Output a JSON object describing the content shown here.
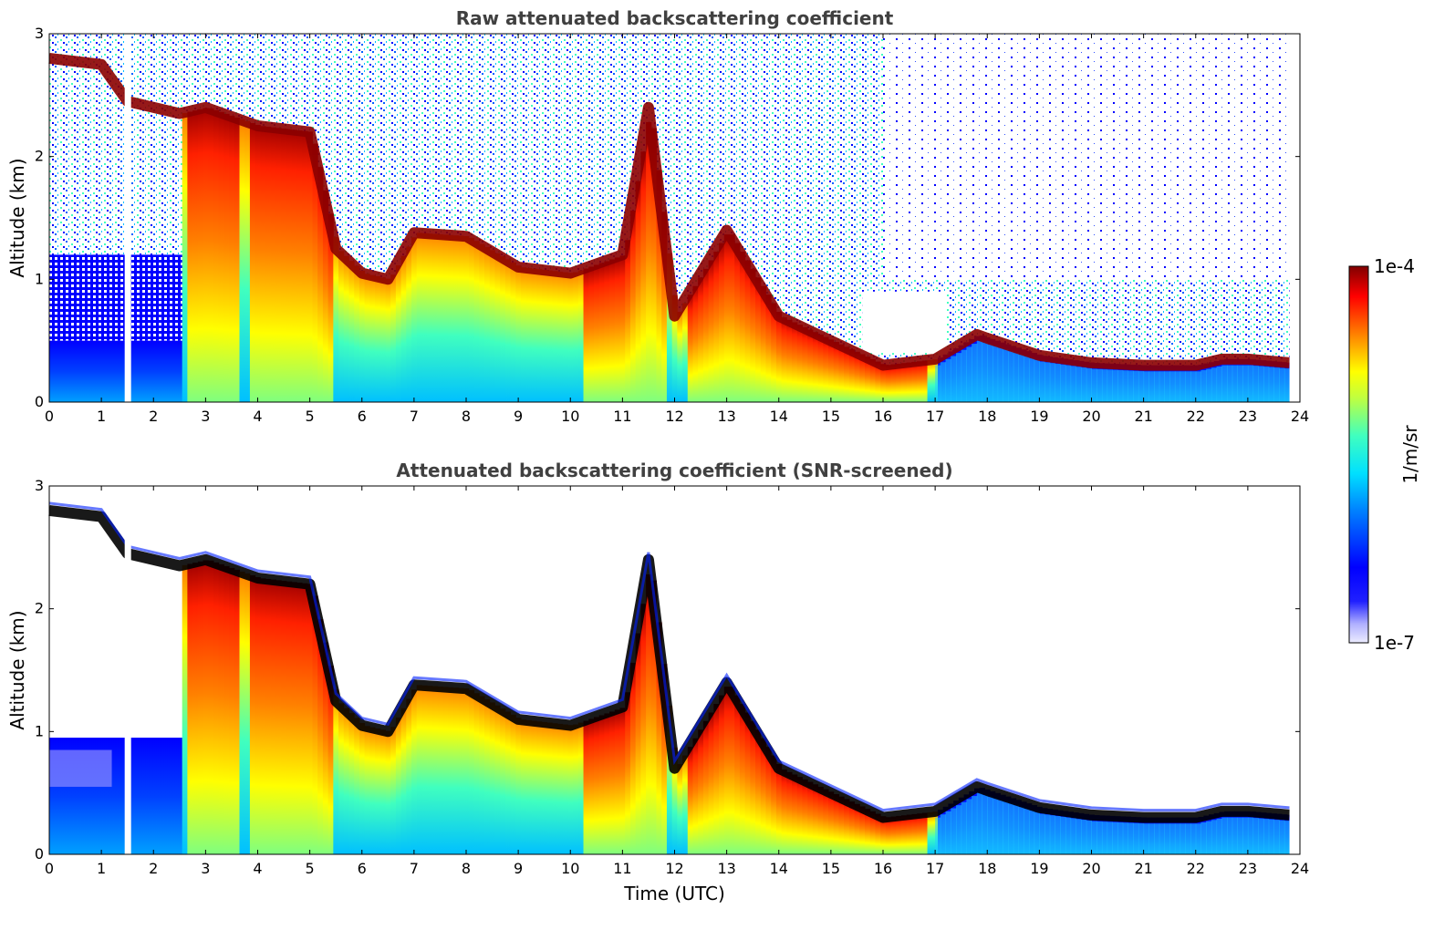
{
  "chart_data": [
    {
      "type": "heatmap",
      "title": "Raw attenuated backscattering coefficient",
      "xlabel": "",
      "ylabel": "Altitude (km)",
      "xlim": [
        0,
        24
      ],
      "ylim": [
        0,
        3
      ],
      "x_ticks": [
        "0",
        "1",
        "2",
        "3",
        "4",
        "5",
        "6",
        "7",
        "8",
        "9",
        "10",
        "11",
        "12",
        "13",
        "14",
        "15",
        "16",
        "17",
        "18",
        "19",
        "20",
        "21",
        "22",
        "23",
        "24"
      ],
      "y_ticks": [
        "0",
        "1",
        "2",
        "3"
      ],
      "data_end_hour": 23.8,
      "gap_hour": 1.5,
      "cloud_layer_top_km": [
        [
          0,
          2.8
        ],
        [
          1,
          2.75
        ],
        [
          1.5,
          2.45
        ],
        [
          2.5,
          2.35
        ],
        [
          3,
          2.4
        ],
        [
          4,
          2.25
        ],
        [
          5,
          2.2
        ],
        [
          5.5,
          1.25
        ],
        [
          6,
          1.05
        ],
        [
          6.5,
          1.0
        ],
        [
          7,
          1.38
        ],
        [
          8,
          1.35
        ],
        [
          9,
          1.1
        ],
        [
          10,
          1.05
        ],
        [
          11,
          1.2
        ],
        [
          11.5,
          2.4
        ],
        [
          12,
          0.7
        ],
        [
          13,
          1.4
        ],
        [
          14,
          0.7
        ],
        [
          15,
          0.5
        ],
        [
          16,
          0.3
        ],
        [
          17,
          0.35
        ],
        [
          17.8,
          0.55
        ],
        [
          18,
          0.52
        ],
        [
          19,
          0.38
        ],
        [
          20,
          0.32
        ],
        [
          21,
          0.3
        ],
        [
          22,
          0.3
        ],
        [
          22.5,
          0.35
        ],
        [
          23,
          0.35
        ],
        [
          23.8,
          0.32
        ]
      ]
    },
    {
      "type": "heatmap",
      "title": "Attenuated backscattering coefficient (SNR-screened)",
      "xlabel": "Time (UTC)",
      "ylabel": "Altitude (km)",
      "xlim": [
        0,
        24
      ],
      "ylim": [
        0,
        3
      ],
      "x_ticks": [
        "0",
        "1",
        "2",
        "3",
        "4",
        "5",
        "6",
        "7",
        "8",
        "9",
        "10",
        "11",
        "12",
        "13",
        "14",
        "15",
        "16",
        "17",
        "18",
        "19",
        "20",
        "21",
        "22",
        "23",
        "24"
      ],
      "y_ticks": [
        "0",
        "1",
        "2",
        "3"
      ],
      "data_end_hour": 23.8,
      "gap_hour": 1.5
    }
  ],
  "colorbar": {
    "label": "1/m/sr",
    "min_label": "1e-7",
    "max_label": "1e-4",
    "colormap": "jet",
    "low_end_colors": [
      "#f0f0ff",
      "#c8c8ff",
      "#9090ff",
      "#0000ff"
    ]
  }
}
